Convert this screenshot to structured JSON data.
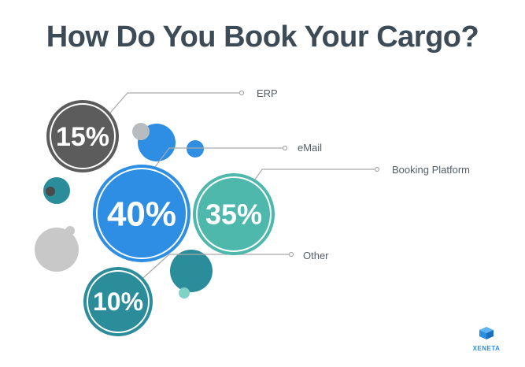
{
  "header": {
    "title": "How Do You Book Your Cargo?"
  },
  "chart_data": {
    "type": "pie",
    "title": "How Do You Book Your Cargo?",
    "categories": [
      "ERP",
      "eMail",
      "Booking Platform",
      "Other"
    ],
    "values": [
      15,
      40,
      35,
      10
    ],
    "value_labels": [
      "15%",
      "40%",
      "35%",
      "10%"
    ],
    "unit": "%",
    "colors": [
      "#5c5c5c",
      "#2d8ee3",
      "#4db8ab",
      "#2b8c9a"
    ]
  },
  "brand": {
    "logo_text": "XENETA",
    "logo_color": "#2a8fe0"
  }
}
